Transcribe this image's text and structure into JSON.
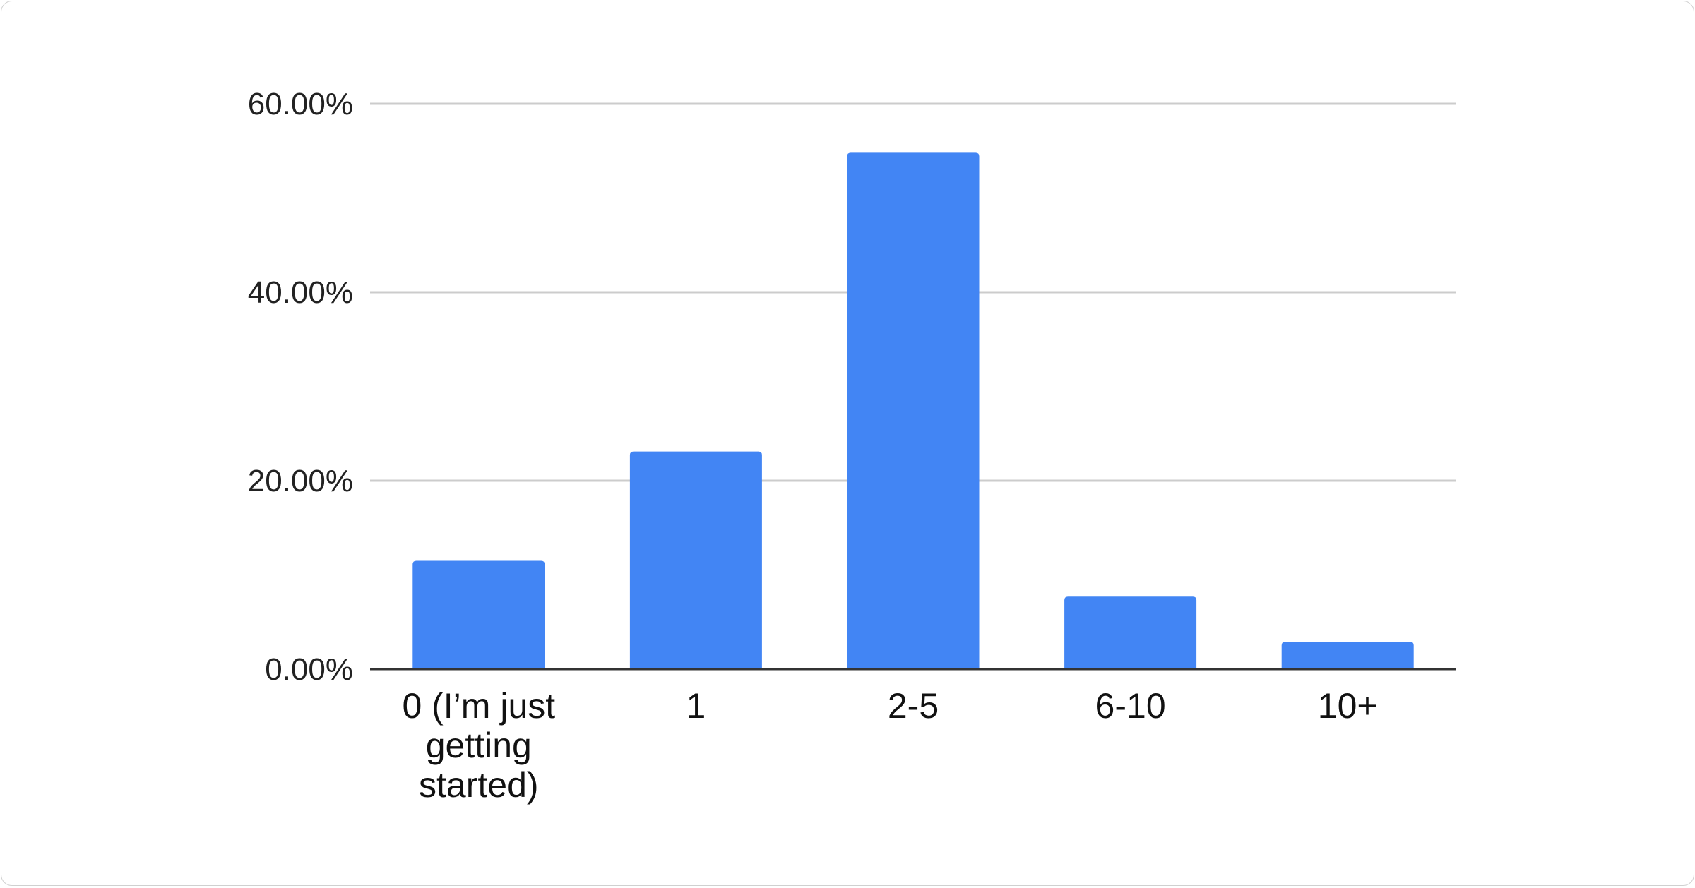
{
  "chart_data": {
    "type": "bar",
    "title": "",
    "xlabel": "",
    "ylabel": "",
    "categories": [
      "0 (I’m just getting started)",
      "1",
      "2-5",
      "6-10",
      "10+"
    ],
    "category_lines": [
      [
        "0 (I’m just",
        "getting",
        "started)"
      ],
      [
        "1"
      ],
      [
        "2-5"
      ],
      [
        "6-10"
      ],
      [
        "10+"
      ]
    ],
    "values": [
      11.5,
      23.1,
      54.8,
      7.7,
      2.9
    ],
    "unit": "%",
    "ylim": [
      0,
      60
    ],
    "yticks": [
      0,
      20,
      40,
      60
    ],
    "ytick_labels": [
      "0.00%",
      "20.00%",
      "40.00%",
      "60.00%"
    ],
    "grid": true,
    "legend": "none",
    "bar_color": "#4285f4",
    "grid_color": "#cccccc",
    "axis_color": "#333333"
  }
}
